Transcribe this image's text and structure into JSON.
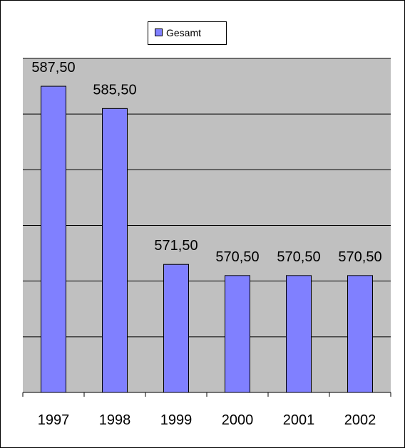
{
  "chart_data": {
    "type": "bar",
    "categories": [
      "1997",
      "1998",
      "1999",
      "2000",
      "2001",
      "2002"
    ],
    "series": [
      {
        "name": "Gesamt",
        "color": "#8080ff",
        "values": [
          587.5,
          585.5,
          571.5,
          570.5,
          570.5,
          570.5
        ],
        "value_labels": [
          "587,50",
          "585,50",
          "571,50",
          "570,50",
          "570,50",
          "570,50"
        ]
      }
    ],
    "ylim": [
      560,
      590
    ],
    "yticks": [
      560,
      565,
      570,
      575,
      580,
      585,
      590
    ],
    "grid": true
  }
}
